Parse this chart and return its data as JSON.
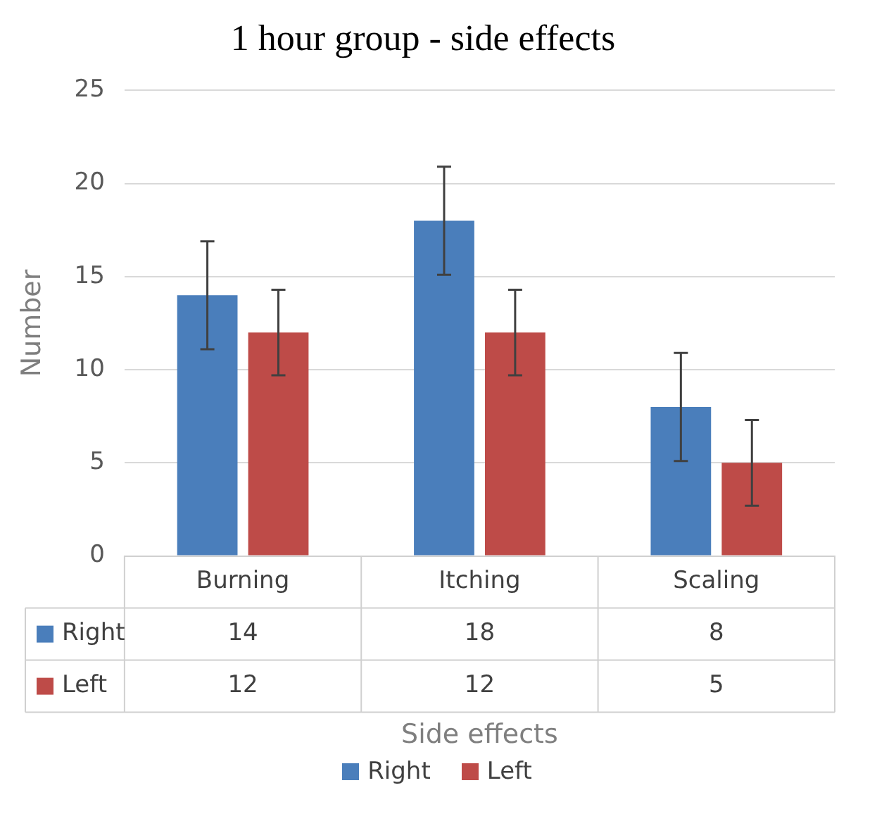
{
  "chart_data": {
    "type": "bar",
    "title": "1 hour group - side effects",
    "xlabel": "Side effects",
    "ylabel": "Number",
    "categories": [
      "Burning",
      "Itching",
      "Scaling"
    ],
    "series": [
      {
        "name": "Right",
        "color": "#4a7ebb",
        "values": [
          14,
          18,
          8
        ],
        "errors": [
          2.9,
          2.9,
          2.9
        ]
      },
      {
        "name": "Left",
        "color": "#be4b48",
        "values": [
          12,
          12,
          5
        ],
        "errors": [
          2.3,
          2.3,
          2.3
        ]
      }
    ],
    "ylim": [
      0,
      25
    ],
    "yticks": [
      0,
      5,
      10,
      15,
      20,
      25
    ],
    "grid": "y",
    "legend": "bottom",
    "data_labels": true
  }
}
